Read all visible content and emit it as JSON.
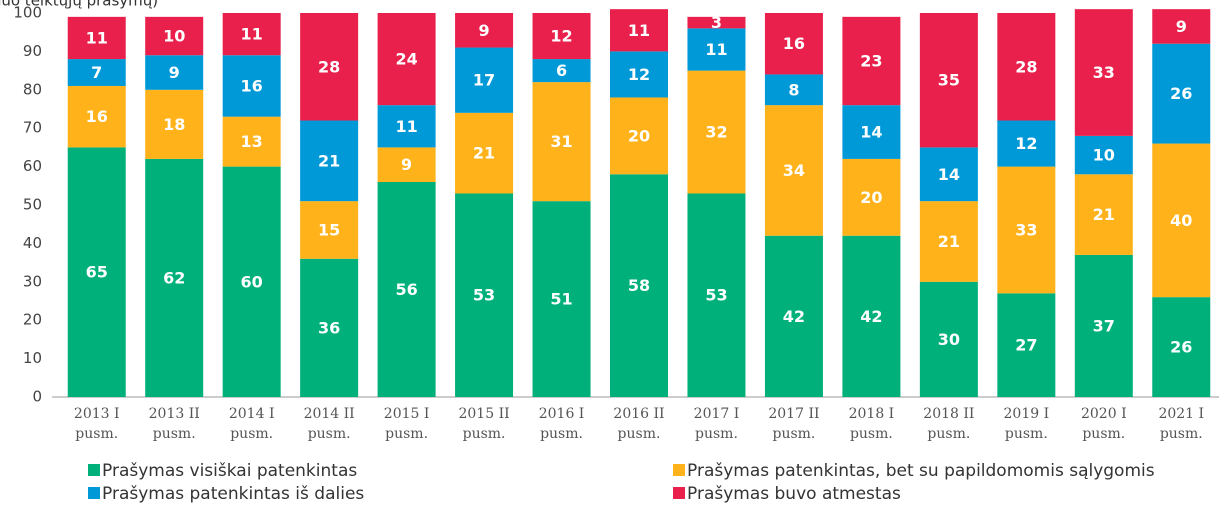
{
  "chart_data": {
    "type": "stacked_bar",
    "subtitle": "(nuo teiktųjų prašymų)",
    "categories": [
      "2013 I\npusm.",
      "2013 II\npusm.",
      "2014 I\npusm.",
      "2014 II\npusm.",
      "2015 I\npusm.",
      "2015 II\npusm.",
      "2016 I\npusm.",
      "2016 II\npusm.",
      "2017 I\npusm.",
      "2017 II\npusm.",
      "2018 I\npusm.",
      "2018 II\npusm.",
      "2019 I\npusm.",
      "2020 I\npusm.",
      "2021 I\npusm."
    ],
    "series": [
      {
        "name": "Prašymas visiškai patenkintas",
        "color": "#00b07a",
        "values": [
          65,
          62,
          60,
          36,
          56,
          53,
          51,
          58,
          53,
          42,
          42,
          30,
          27,
          37,
          26
        ]
      },
      {
        "name": "Prašymas patenkintas, bet su papildomomis sąlygomis",
        "color": "#ffb21a",
        "values": [
          16,
          18,
          13,
          15,
          9,
          21,
          31,
          20,
          32,
          34,
          20,
          21,
          33,
          21,
          40
        ]
      },
      {
        "name": "Prašymas patenkintas iš dalies",
        "color": "#0099d8",
        "values": [
          7,
          9,
          16,
          21,
          11,
          17,
          6,
          12,
          11,
          8,
          14,
          14,
          12,
          10,
          26
        ]
      },
      {
        "name": "Prašymas buvo atmestas",
        "color": "#e8204b",
        "values": [
          11,
          10,
          11,
          28,
          24,
          9,
          12,
          11,
          3,
          16,
          23,
          35,
          28,
          33,
          9
        ]
      }
    ],
    "ylim": [
      0,
      100
    ],
    "yticks": [
      0,
      10,
      20,
      30,
      40,
      50,
      60,
      70,
      80,
      90,
      100
    ],
    "legend": "bottom"
  }
}
